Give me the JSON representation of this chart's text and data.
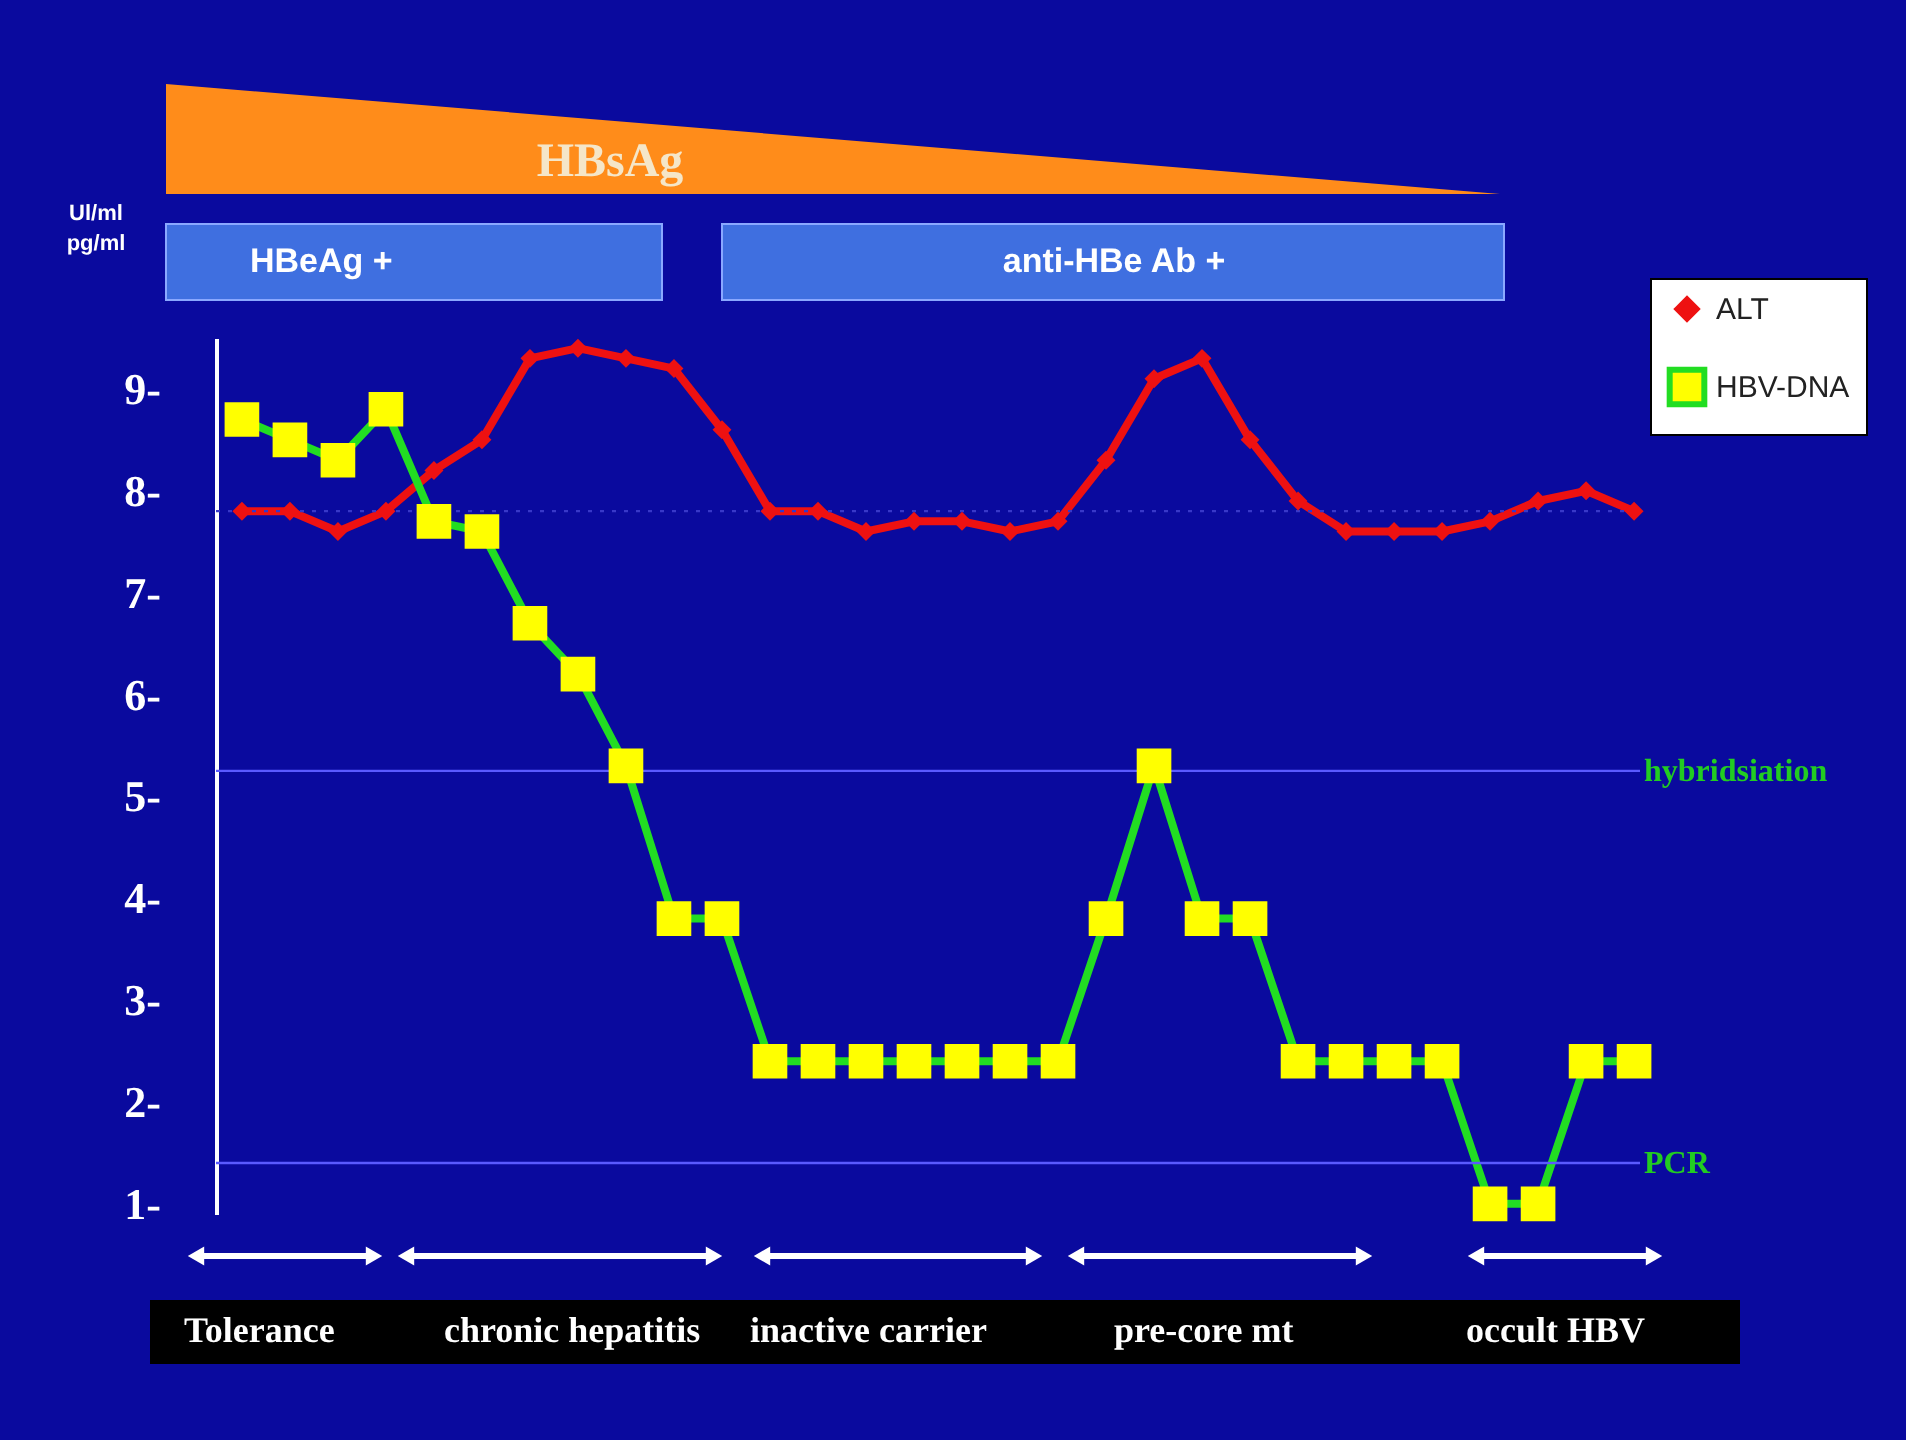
{
  "chart_data": {
    "type": "line",
    "ylabel": "Ul/ml pg/ml",
    "categories": [
      null,
      null,
      null,
      null,
      null,
      null,
      null,
      null,
      null,
      null,
      null,
      null,
      null,
      null,
      null,
      null,
      null,
      null,
      null,
      null,
      null,
      null,
      null,
      null,
      null,
      null,
      null,
      null,
      null,
      null
    ],
    "series": [
      {
        "name": "ALT",
        "color": "#ee1111",
        "marker": "diamond",
        "values": [
          7.8,
          7.8,
          7.6,
          7.8,
          8.2,
          8.5,
          9.3,
          9.4,
          9.3,
          9.2,
          8.6,
          7.8,
          7.8,
          7.6,
          7.7,
          7.7,
          7.6,
          7.7,
          8.3,
          9.1,
          9.3,
          8.5,
          7.9,
          7.6,
          7.6,
          7.6,
          7.7,
          7.9,
          8.0,
          7.8
        ]
      },
      {
        "name": "HBV-DNA",
        "color": "#22dd22",
        "marker": "square",
        "values": [
          8.7,
          8.5,
          8.3,
          8.8,
          7.7,
          7.6,
          6.7,
          6.2,
          5.3,
          3.8,
          3.8,
          2.4,
          2.4,
          2.4,
          2.4,
          2.4,
          2.4,
          2.4,
          3.8,
          5.3,
          3.8,
          3.8,
          2.4,
          2.4,
          2.4,
          2.4,
          1.0,
          1.0,
          2.4,
          2.4
        ]
      }
    ],
    "ylim": [
      0.9,
      9.5
    ],
    "yticks": [
      {
        "value": 1,
        "label": "1-"
      },
      {
        "value": 2,
        "label": "2-"
      },
      {
        "value": 3,
        "label": "3-"
      },
      {
        "value": 4,
        "label": "4-"
      },
      {
        "value": 5,
        "label": "5-"
      },
      {
        "value": 6,
        "label": "6-"
      },
      {
        "value": 7,
        "label": "7-"
      },
      {
        "value": 8,
        "label": "8-"
      },
      {
        "value": 9,
        "label": "9-"
      }
    ],
    "tick_labels": "y",
    "grid": false,
    "legend": "top right",
    "line_style": "solid",
    "ref_lines": [
      {
        "axis": "y",
        "value": 5.25,
        "label": "hybridsiation",
        "color": "#5a5aff",
        "line_style": "solid"
      },
      {
        "axis": "y",
        "value": 1.4,
        "label": "PCR",
        "color": "#5a5aff",
        "line_style": "solid"
      },
      {
        "axis": "y",
        "value": 7.8,
        "label": null,
        "color": "#3838c8",
        "line_style": "dotted"
      }
    ],
    "annotations": [
      "HBsAg",
      "HBeAg +",
      "anti-HBe Ab +",
      "Tolerance",
      "chronic hepatitis",
      "inactive carrier",
      "pre-core mt",
      "occult HBV"
    ]
  }
}
